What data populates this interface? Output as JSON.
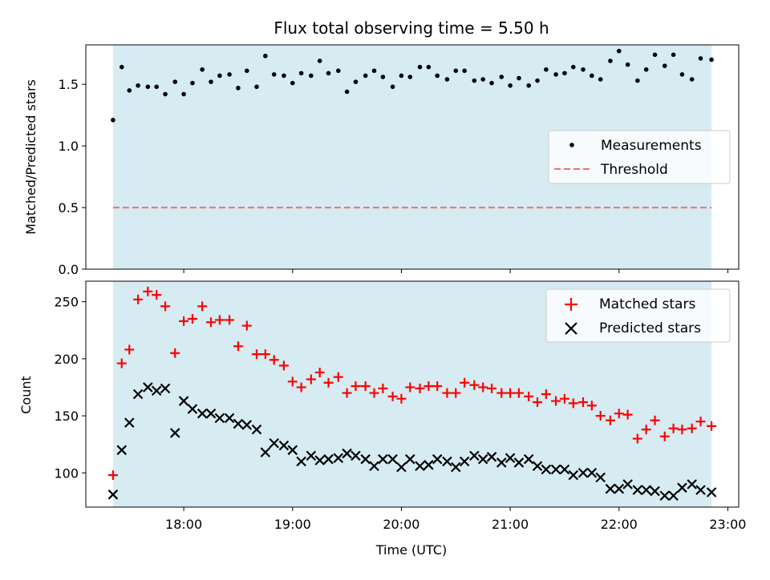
{
  "chart_data": [
    {
      "type": "scatter",
      "title": "Flux total observing time = 5.50 h",
      "ylabel": "Matched/Predicted stars",
      "xlabel": "",
      "ylim": [
        0,
        1.82
      ],
      "yticks": [
        0.0,
        0.5,
        1.0,
        1.5
      ],
      "ytick_labels": [
        "0.0",
        "0.5",
        "1.0",
        "1.5"
      ],
      "x_is_time_hours": true,
      "xlim": [
        17.1,
        23.1
      ],
      "observing_span": [
        17.35,
        22.85
      ],
      "threshold": 0.5,
      "legend_placement": "center-right",
      "series": [
        {
          "name": "Measurements",
          "marker": "dot",
          "color": "#000000",
          "x": [
            17.35,
            17.43,
            17.5,
            17.58,
            17.67,
            17.75,
            17.83,
            17.92,
            18.0,
            18.08,
            18.17,
            18.25,
            18.33,
            18.42,
            18.5,
            18.58,
            18.67,
            18.75,
            18.83,
            18.92,
            19.0,
            19.08,
            19.17,
            19.25,
            19.33,
            19.42,
            19.5,
            19.58,
            19.67,
            19.75,
            19.83,
            19.92,
            20.0,
            20.08,
            20.17,
            20.25,
            20.33,
            20.42,
            20.5,
            20.58,
            20.67,
            20.75,
            20.83,
            20.92,
            21.0,
            21.08,
            21.17,
            21.25,
            21.33,
            21.42,
            21.5,
            21.58,
            21.67,
            21.75,
            21.83,
            21.92,
            22.0,
            22.08,
            22.17,
            22.25,
            22.33,
            22.42,
            22.5,
            22.58,
            22.67,
            22.75,
            22.85
          ],
          "y": [
            1.21,
            1.64,
            1.45,
            1.49,
            1.48,
            1.48,
            1.42,
            1.52,
            1.42,
            1.51,
            1.62,
            1.52,
            1.57,
            1.58,
            1.47,
            1.61,
            1.48,
            1.73,
            1.58,
            1.57,
            1.51,
            1.59,
            1.57,
            1.69,
            1.59,
            1.61,
            1.44,
            1.52,
            1.57,
            1.61,
            1.56,
            1.48,
            1.57,
            1.56,
            1.64,
            1.64,
            1.57,
            1.54,
            1.61,
            1.61,
            1.53,
            1.54,
            1.51,
            1.56,
            1.49,
            1.55,
            1.49,
            1.53,
            1.62,
            1.58,
            1.59,
            1.64,
            1.62,
            1.57,
            1.54,
            1.69,
            1.77,
            1.66,
            1.53,
            1.62,
            1.74,
            1.65,
            1.74,
            1.58,
            1.54,
            1.71,
            1.7
          ]
        },
        {
          "name": "Threshold",
          "marker": "dashed-line",
          "color": "#f07070"
        }
      ]
    },
    {
      "type": "scatter",
      "title": "",
      "ylabel": "Count",
      "xlabel": "Time (UTC)",
      "ylim": [
        70,
        268
      ],
      "yticks": [
        100,
        150,
        200,
        250
      ],
      "ytick_labels": [
        "100",
        "150",
        "200",
        "250"
      ],
      "xticks": [
        18,
        19,
        20,
        21,
        22,
        23
      ],
      "xtick_labels": [
        "18:00",
        "19:00",
        "20:00",
        "21:00",
        "22:00",
        "23:00"
      ],
      "legend_placement": "top-right",
      "series": [
        {
          "name": "Matched stars",
          "marker": "plus",
          "color": "#ff0000",
          "x": [
            17.35,
            17.43,
            17.5,
            17.58,
            17.67,
            17.75,
            17.83,
            17.92,
            18.0,
            18.08,
            18.17,
            18.25,
            18.33,
            18.42,
            18.5,
            18.58,
            18.67,
            18.75,
            18.83,
            18.92,
            19.0,
            19.08,
            19.17,
            19.25,
            19.33,
            19.42,
            19.5,
            19.58,
            19.67,
            19.75,
            19.83,
            19.92,
            20.0,
            20.08,
            20.17,
            20.25,
            20.33,
            20.42,
            20.5,
            20.58,
            20.67,
            20.75,
            20.83,
            20.92,
            21.0,
            21.08,
            21.17,
            21.25,
            21.33,
            21.42,
            21.5,
            21.58,
            21.67,
            21.75,
            21.83,
            21.92,
            22.0,
            22.08,
            22.17,
            22.25,
            22.33,
            22.42,
            22.5,
            22.58,
            22.67,
            22.75,
            22.85
          ],
          "y": [
            98,
            196,
            208,
            252,
            259,
            256,
            246,
            205,
            233,
            235,
            246,
            232,
            234,
            234,
            211,
            229,
            204,
            204,
            199,
            194,
            180,
            175,
            182,
            188,
            179,
            184,
            170,
            176,
            176,
            170,
            174,
            167,
            165,
            175,
            174,
            176,
            176,
            170,
            170,
            179,
            177,
            175,
            174,
            170,
            170,
            170,
            167,
            162,
            169,
            163,
            165,
            161,
            162,
            159,
            150,
            146,
            152,
            151,
            130,
            138,
            146,
            132,
            139,
            138,
            139,
            145,
            141
          ]
        },
        {
          "name": "Predicted stars",
          "marker": "x",
          "color": "#000000",
          "x": [
            17.35,
            17.43,
            17.5,
            17.58,
            17.67,
            17.75,
            17.83,
            17.92,
            18.0,
            18.08,
            18.17,
            18.25,
            18.33,
            18.42,
            18.5,
            18.58,
            18.67,
            18.75,
            18.83,
            18.92,
            19.0,
            19.08,
            19.17,
            19.25,
            19.33,
            19.42,
            19.5,
            19.58,
            19.67,
            19.75,
            19.83,
            19.92,
            20.0,
            20.08,
            20.17,
            20.25,
            20.33,
            20.42,
            20.5,
            20.58,
            20.67,
            20.75,
            20.83,
            20.92,
            21.0,
            21.08,
            21.17,
            21.25,
            21.33,
            21.42,
            21.5,
            21.58,
            21.67,
            21.75,
            21.83,
            21.92,
            22.0,
            22.08,
            22.17,
            22.25,
            22.33,
            22.42,
            22.5,
            22.58,
            22.67,
            22.75,
            22.85
          ],
          "y": [
            81,
            120,
            144,
            169,
            175,
            172,
            174,
            135,
            163,
            156,
            152,
            152,
            148,
            148,
            143,
            142,
            138,
            118,
            126,
            124,
            120,
            110,
            115,
            111,
            112,
            113,
            117,
            115,
            112,
            106,
            112,
            112,
            105,
            112,
            106,
            107,
            112,
            110,
            105,
            110,
            115,
            112,
            114,
            109,
            113,
            109,
            112,
            106,
            103,
            103,
            103,
            98,
            100,
            100,
            96,
            86,
            86,
            90,
            85,
            85,
            84,
            80,
            80,
            87,
            90,
            85,
            83
          ]
        }
      ]
    }
  ]
}
